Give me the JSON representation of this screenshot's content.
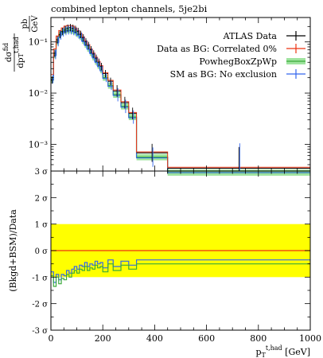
{
  "header": {
    "title": "combined lepton channels, 5je2bi"
  },
  "chart_data": [
    {
      "type": "line",
      "yscale": "log",
      "ylabel": "dσ^fid / dp_T^{t,had} [pb/GeV]",
      "ylim": [
        0.0003,
        0.3
      ],
      "xlim": [
        0,
        1000
      ],
      "yticks": [
        {
          "value": 0.001,
          "label": "10⁻³"
        },
        {
          "value": 0.01,
          "label": "10⁻²"
        },
        {
          "value": 0.1,
          "label": "10⁻¹"
        }
      ],
      "legend_position": "top-right",
      "bin_edges": [
        0,
        10,
        20,
        30,
        40,
        50,
        60,
        70,
        80,
        90,
        100,
        110,
        120,
        130,
        140,
        150,
        160,
        170,
        180,
        190,
        200,
        220,
        240,
        270,
        300,
        330,
        450,
        1000
      ],
      "series": [
        {
          "name": "ATLAS Data",
          "color": "#000000",
          "kind": "errorbar",
          "values": [
            0.018,
            0.06,
            0.11,
            0.14,
            0.16,
            0.175,
            0.185,
            0.19,
            0.185,
            0.175,
            0.16,
            0.14,
            0.12,
            0.1,
            0.085,
            0.07,
            0.058,
            0.048,
            0.04,
            0.033,
            0.024,
            0.017,
            0.011,
            0.0065,
            0.004,
            0.00068,
            0.00034
          ]
        },
        {
          "name": "Data as BG: Correlated 0%",
          "color": "#ee3311",
          "kind": "line",
          "values": [
            0.022,
            0.07,
            0.125,
            0.16,
            0.18,
            0.195,
            0.2,
            0.2,
            0.195,
            0.18,
            0.16,
            0.14,
            0.12,
            0.1,
            0.085,
            0.07,
            0.058,
            0.048,
            0.04,
            0.033,
            0.024,
            0.017,
            0.011,
            0.0065,
            0.004,
            0.00068,
            0.00034
          ]
        },
        {
          "name": "PowhegBoxZpWp",
          "color": "#3aaa3a",
          "band_color": "#9ee39e",
          "kind": "band",
          "values": [
            0.018,
            0.055,
            0.1,
            0.135,
            0.155,
            0.165,
            0.17,
            0.17,
            0.165,
            0.155,
            0.14,
            0.125,
            0.105,
            0.088,
            0.074,
            0.061,
            0.05,
            0.041,
            0.034,
            0.028,
            0.02,
            0.014,
            0.0093,
            0.0055,
            0.0034,
            0.00056,
            0.00028
          ]
        },
        {
          "name": "SM as BG: No exclusion",
          "color": "#3366ee",
          "kind": "line",
          "values": [
            0.019,
            0.056,
            0.1,
            0.135,
            0.155,
            0.165,
            0.17,
            0.17,
            0.165,
            0.155,
            0.14,
            0.125,
            0.105,
            0.088,
            0.074,
            0.061,
            0.05,
            0.041,
            0.034,
            0.028,
            0.02,
            0.014,
            0.0093,
            0.0055,
            0.0034,
            0.00056,
            0.00029
          ]
        }
      ]
    },
    {
      "type": "line",
      "ylabel": "(Bkgd+BSM)/Data",
      "ylim": [
        -3,
        3
      ],
      "xlim": [
        0,
        1000
      ],
      "xlabel": "p_T^{t,had} [GeV]",
      "xticks": [
        0,
        200,
        400,
        600,
        800,
        1000
      ],
      "yticks": [
        {
          "value": 3,
          "label": "3 σ"
        },
        {
          "value": 2,
          "label": "2 σ"
        },
        {
          "value": 1,
          "label": "1 σ"
        },
        {
          "value": 0,
          "label": "0 σ"
        },
        {
          "value": -1,
          "label": "-1 σ"
        },
        {
          "value": -2,
          "label": "-2 σ"
        },
        {
          "value": -3,
          "label": "-3 σ"
        }
      ],
      "band": {
        "from": -1,
        "to": 1,
        "color": "#ffff00"
      },
      "bin_edges": [
        0,
        10,
        20,
        30,
        40,
        50,
        60,
        70,
        80,
        90,
        100,
        110,
        120,
        130,
        140,
        150,
        160,
        170,
        180,
        190,
        200,
        220,
        240,
        270,
        300,
        330,
        450,
        1000
      ],
      "series": [
        {
          "name": "Data as BG: Correlated 0%",
          "color": "#ee3311",
          "values": [
            0,
            0,
            0,
            0,
            0,
            0,
            0,
            0,
            0,
            0,
            0,
            0,
            0,
            0,
            0,
            0,
            0,
            0,
            0,
            0,
            0,
            0,
            0,
            0,
            0,
            0,
            0
          ]
        },
        {
          "name": "SM as BG: No exclusion",
          "color": "#3366ee",
          "values": [
            -0.8,
            -1.2,
            -0.9,
            -1.1,
            -0.9,
            -0.95,
            -0.75,
            -0.85,
            -0.7,
            -0.6,
            -0.7,
            -0.55,
            -0.6,
            -0.45,
            -0.6,
            -0.5,
            -0.55,
            -0.4,
            -0.5,
            -0.45,
            -0.65,
            -0.35,
            -0.6,
            -0.4,
            -0.55,
            -0.35,
            -0.35
          ]
        },
        {
          "name": "PowhegBoxZpWp",
          "color": "#3aaa3a",
          "values": [
            -0.95,
            -1.35,
            -1.0,
            -1.25,
            -1.05,
            -1.1,
            -0.9,
            -1.0,
            -0.85,
            -0.75,
            -0.85,
            -0.7,
            -0.75,
            -0.6,
            -0.75,
            -0.65,
            -0.7,
            -0.55,
            -0.65,
            -0.6,
            -0.8,
            -0.5,
            -0.75,
            -0.55,
            -0.7,
            -0.5,
            -0.5
          ]
        }
      ]
    }
  ]
}
